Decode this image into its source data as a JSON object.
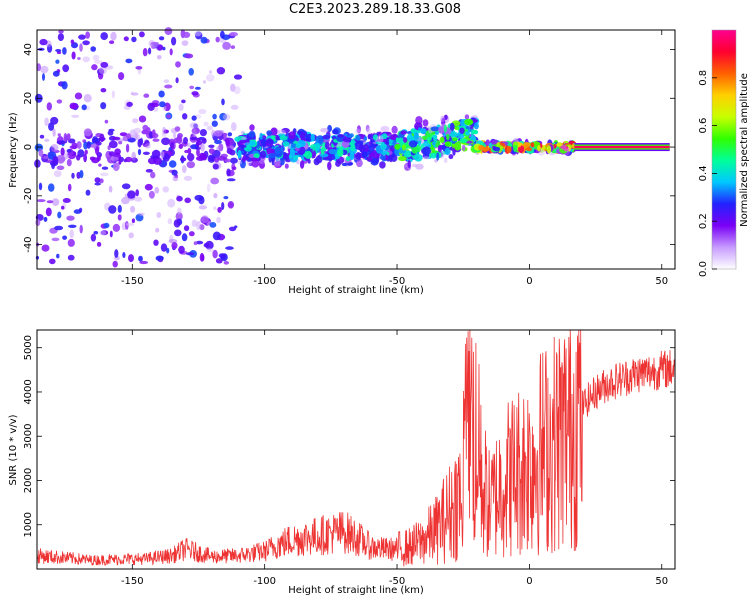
{
  "title": "C2E3.2023.289.18.33.G08",
  "chart_data": [
    {
      "type": "heatmap",
      "xlabel": "Height of straight line (km)",
      "ylabel": "Frequency (Hz)",
      "xlim": [
        -186,
        55
      ],
      "ylim": [
        -50,
        48
      ],
      "xticks": [
        -150,
        -100,
        -50,
        0,
        50
      ],
      "yticks": [
        -40,
        -20,
        0,
        20,
        40
      ],
      "colorbar": {
        "label": "Normalized spectral amplitude",
        "range": [
          0.0,
          1.0
        ],
        "ticks": [
          0.0,
          0.2,
          0.4,
          0.6,
          0.8
        ],
        "colors": [
          "#ffffff",
          "#c79bff",
          "#7a00f5",
          "#2222ff",
          "#00c8ff",
          "#00ff9a",
          "#30ff00",
          "#c8ff00",
          "#ffd000",
          "#ff6000",
          "#ff0030",
          "#ff0090"
        ]
      },
      "regions": [
        {
          "x": [
            -186,
            -110
          ],
          "freq_spread_hz": 48,
          "amplitude": 0.2
        },
        {
          "x": [
            -110,
            -50
          ],
          "freq_spread_hz": 8,
          "amplitude": 0.35
        },
        {
          "x": [
            -50,
            -20
          ],
          "freq_spread_hz": 10,
          "amplitude": 0.45
        },
        {
          "x": [
            -20,
            17
          ],
          "freq_spread_hz": 2,
          "amplitude": 0.75
        },
        {
          "x": [
            17,
            53
          ],
          "freq_spread_hz": 1,
          "amplitude": 0.95
        }
      ]
    },
    {
      "type": "line",
      "xlabel": "Height of straight line (km)",
      "ylabel": "SNR (10 * v/v)",
      "xlim": [
        -186,
        55
      ],
      "ylim": [
        0,
        5400
      ],
      "xticks": [
        -150,
        -100,
        -50,
        0,
        50
      ],
      "yticks": [
        1000,
        2000,
        3000,
        4000,
        5000
      ],
      "line_color": "#ee3333",
      "series": [
        {
          "x": [
            -186,
            -175,
            -165,
            -155,
            -145,
            -135,
            -130,
            -120,
            -110,
            -100,
            -95,
            -90,
            -85,
            -80,
            -75,
            -70,
            -65,
            -60,
            -55,
            -50,
            -45,
            -40,
            -35,
            -30,
            -25,
            -22,
            -20,
            -15,
            -10,
            -5,
            0,
            5,
            10,
            15,
            20,
            25,
            30,
            35,
            40,
            45,
            50,
            55
          ],
          "values": [
            300,
            250,
            200,
            220,
            230,
            300,
            450,
            280,
            300,
            400,
            550,
            650,
            700,
            750,
            800,
            850,
            700,
            500,
            450,
            450,
            500,
            650,
            900,
            1300,
            1800,
            3600,
            2400,
            1400,
            2000,
            2200,
            2400,
            2700,
            2900,
            3200,
            3700,
            4000,
            4200,
            4300,
            4400,
            4450,
            4500,
            4550
          ]
        }
      ]
    }
  ]
}
